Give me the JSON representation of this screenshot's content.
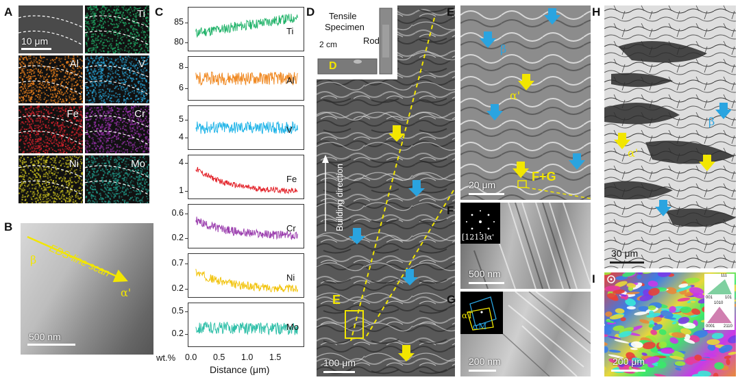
{
  "panel_letters": {
    "A": "A",
    "B": "B",
    "C": "C",
    "D": "D",
    "E": "E",
    "F": "F",
    "G": "G",
    "H": "H",
    "I": "I"
  },
  "colors": {
    "Ti": "#22b36a",
    "Al": "#f08a24",
    "V": "#23b5e8",
    "Fe": "#e3242b",
    "Cr": "#9b3fae",
    "Ni": "#f2c40f",
    "Mo": "#2fbfa8",
    "yellow_arrow": "#f2e600",
    "blue_arrow": "#2aa4e0"
  },
  "panel_a": {
    "scale_label": "10 μm",
    "maps": [
      {
        "label": "",
        "color": "#4a4a4a"
      },
      {
        "label": "Ti",
        "color": "#1f9d5e"
      },
      {
        "label": "Al",
        "color": "#d9771c"
      },
      {
        "label": "V",
        "color": "#2596c4"
      },
      {
        "label": "Fe",
        "color": "#c8202a"
      },
      {
        "label": "Cr",
        "color": "#8e2fa0"
      },
      {
        "label": "Ni",
        "color": "#b8b01c"
      },
      {
        "label": "Mo",
        "color": "#1f8f80"
      }
    ]
  },
  "panel_b": {
    "scan_label": "EDS-line scan",
    "beta_label": "β",
    "alpha_label": "α'",
    "scale_label": "500 nm"
  },
  "panel_c": {
    "xlabel": "Distance (μm)",
    "ylabel_unit": "wt.%",
    "x_ticks": [
      "0.0",
      "0.5",
      "1.0",
      "1.5"
    ]
  },
  "chart_data": {
    "type": "line",
    "xlabel": "Distance (μm)",
    "ylabel": "wt.%",
    "xlim": [
      0,
      1.7
    ],
    "series": [
      {
        "name": "Ti",
        "ticks": [
          "85",
          "80"
        ],
        "tick_values": [
          85,
          80
        ],
        "ylim": [
          78,
          89
        ],
        "start": 82.5,
        "end": 86.5,
        "shape": "linear",
        "noise": 1.3
      },
      {
        "name": "Al",
        "ticks": [
          "8",
          "6"
        ],
        "tick_values": [
          8,
          6
        ],
        "ylim": [
          5,
          9
        ],
        "start": 7,
        "end": 7,
        "shape": "linear",
        "noise": 0.6
      },
      {
        "name": "V",
        "ticks": [
          "5",
          "4"
        ],
        "tick_values": [
          5,
          4
        ],
        "ylim": [
          3.4,
          5.8
        ],
        "start": 4.6,
        "end": 4.6,
        "shape": "linear",
        "noise": 0.35
      },
      {
        "name": "Fe",
        "ticks": [
          "4",
          "1"
        ],
        "tick_values": [
          4,
          1
        ],
        "ylim": [
          0.3,
          4.9
        ],
        "start": 3.5,
        "end": 1.0,
        "shape": "decay",
        "noise": 0.3
      },
      {
        "name": "Cr",
        "ticks": [
          "0.6",
          "0.2"
        ],
        "tick_values": [
          0.6,
          0.2
        ],
        "ylim": [
          0.05,
          0.75
        ],
        "start": 0.5,
        "end": 0.24,
        "shape": "decay",
        "noise": 0.07
      },
      {
        "name": "Ni",
        "ticks": [
          "0.7",
          "0.2"
        ],
        "tick_values": [
          0.7,
          0.2
        ],
        "ylim": [
          0.05,
          0.9
        ],
        "start": 0.55,
        "end": 0.2,
        "shape": "decay",
        "noise": 0.08
      },
      {
        "name": "Mo",
        "ticks": [
          "0.5",
          "0.2"
        ],
        "tick_values": [
          0.5,
          0.2
        ],
        "ylim": [
          0.05,
          0.62
        ],
        "start": 0.3,
        "end": 0.28,
        "shape": "linear",
        "noise": 0.08
      }
    ]
  },
  "panel_d": {
    "specimen_label_1": "Tensile",
    "specimen_label_2": "Specimen",
    "rod_label": "Rod",
    "inset_scale": "2 cm",
    "inset_letter": "D",
    "building_direction": "Building direction",
    "region_label": "E",
    "scale_label": "100 μm"
  },
  "panel_e": {
    "beta_label": "β",
    "alpha_label": "α'",
    "fg_label": "F+G",
    "scale_label": "20 μm"
  },
  "panel_f": {
    "zone_axis": "[1213]α'",
    "scale_label": "500 nm"
  },
  "panel_g": {
    "alpha_t": "αT",
    "alpha_m": "αM",
    "scale_label": "200 nm"
  },
  "panel_h": {
    "beta_label": "β",
    "alpha_label": "α'",
    "scale_label": "30 μm"
  },
  "panel_i": {
    "legend_top": [
      "111",
      "001",
      "101"
    ],
    "legend_bottom": [
      "1010",
      "0001",
      "2110"
    ],
    "scale_label": "200 μm"
  }
}
